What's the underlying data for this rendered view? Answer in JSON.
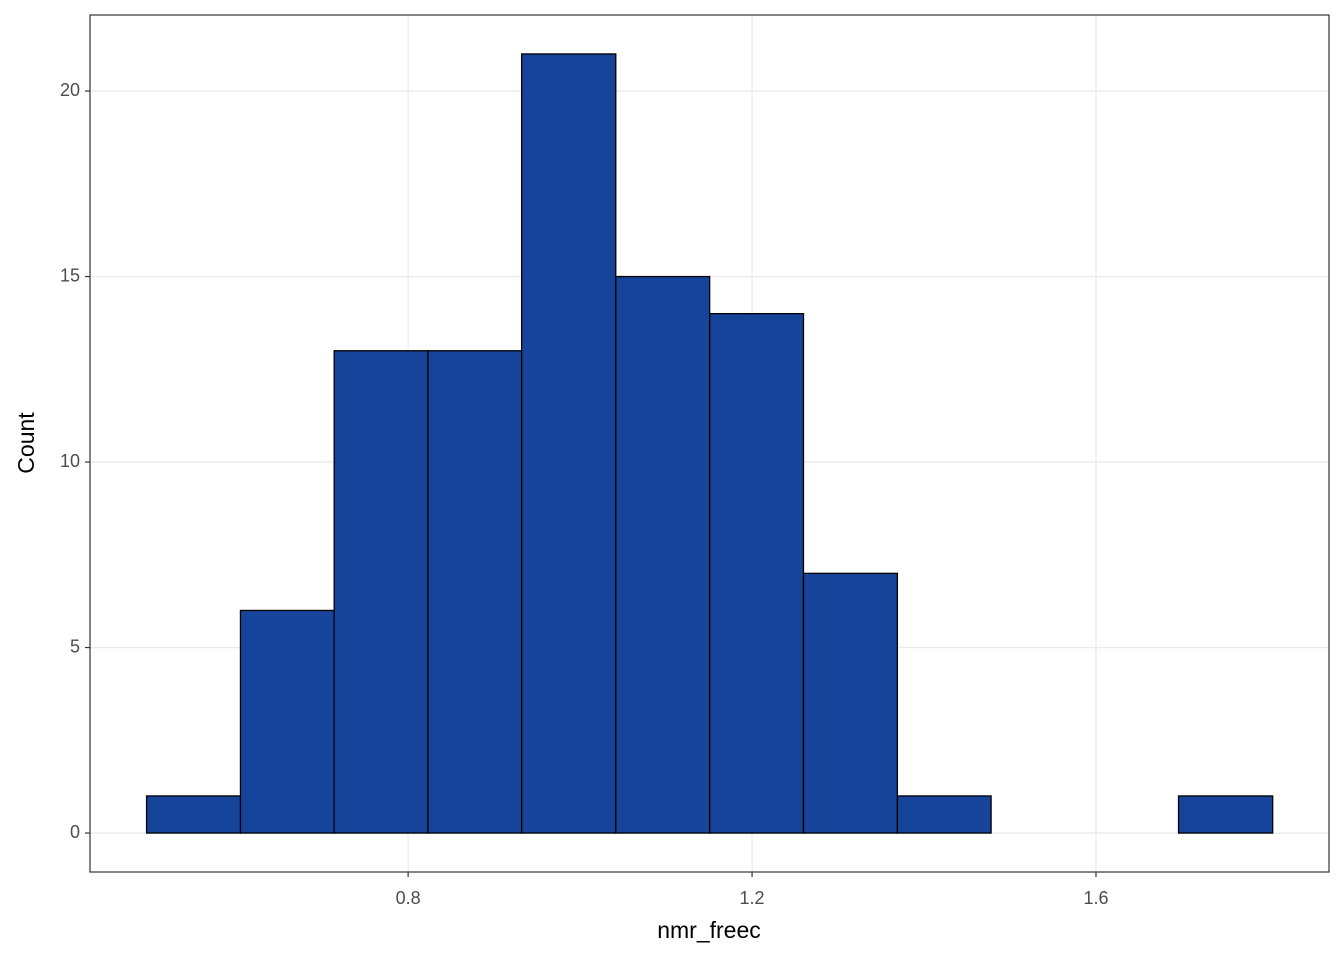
{
  "chart_data": {
    "type": "histogram",
    "x_label": "nmr_freec",
    "y_label": "Count",
    "bins": [
      0.4958,
      0.605,
      0.714,
      0.823,
      0.932,
      1.0415,
      1.1507,
      1.2598,
      1.369,
      1.478,
      1.587,
      1.696,
      1.8055
    ],
    "counts": [
      1,
      6,
      13,
      13,
      21,
      15,
      14,
      7,
      1,
      0,
      0,
      1
    ],
    "color": "#17449b",
    "edge_color": "#000000",
    "xlim": [
      0.43,
      1.871
    ],
    "ylim": [
      -1.05,
      22.05
    ],
    "xticks": [
      0.8,
      1.2,
      1.6
    ],
    "yticks": [
      0,
      5,
      10,
      15,
      20
    ],
    "grid": true
  }
}
